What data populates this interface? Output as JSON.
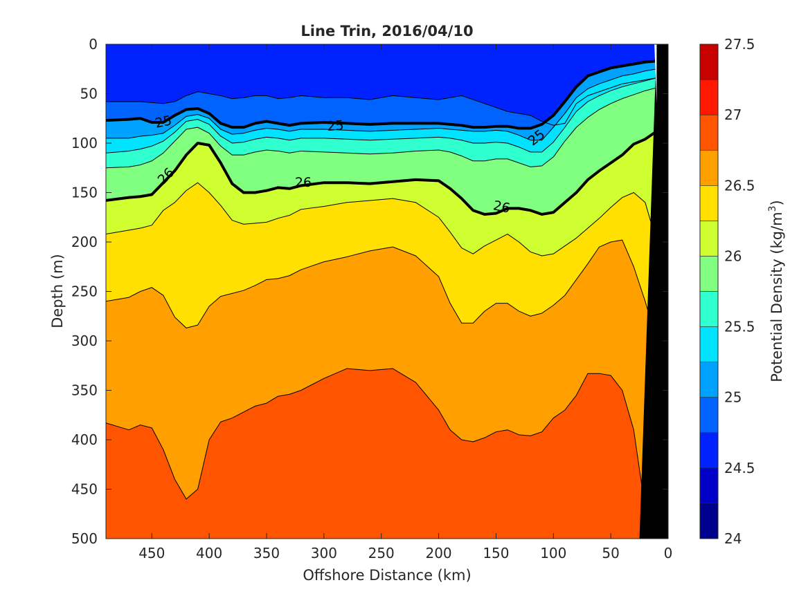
{
  "chart_data": {
    "type": "contour",
    "title": "Line Trin, 2016/04/10",
    "xlabel": "Offshore Distance (km)",
    "ylabel": "Depth (m)",
    "x_reversed": true,
    "y_reversed": true,
    "xlim": [
      490,
      0
    ],
    "ylim": [
      0,
      500
    ],
    "xticks": [
      450,
      400,
      350,
      300,
      250,
      200,
      150,
      100,
      50,
      0
    ],
    "yticks": [
      0,
      50,
      100,
      150,
      200,
      250,
      300,
      350,
      400,
      450,
      500
    ],
    "colorbar": {
      "label_main": "Potential Density (kg/m",
      "label_sup": "3",
      "label_close": ")",
      "range": [
        24,
        27.5
      ],
      "ticks": [
        "24",
        "24.5",
        "25",
        "25.5",
        "26",
        "26.5",
        "27",
        "27.5"
      ],
      "levels": [
        24,
        24.25,
        24.5,
        24.75,
        25,
        25.25,
        25.5,
        25.75,
        26,
        26.25,
        26.5,
        26.75,
        27,
        27.25,
        27.5
      ],
      "colors": [
        "#00008f",
        "#0000c8",
        "#0022ff",
        "#0062ff",
        "#00a2ff",
        "#00e2ff",
        "#30ffcf",
        "#80ff80",
        "#cfff30",
        "#ffe000",
        "#ffa000",
        "#ff5400",
        "#ff1800",
        "#c80000"
      ]
    },
    "isopycnals": [
      {
        "level": 24.75,
        "x": [
          490,
          460,
          440,
          430,
          420,
          410,
          400,
          390,
          380,
          370,
          360,
          350,
          340,
          330,
          320,
          300,
          280,
          260,
          240,
          220,
          200,
          180,
          170,
          160,
          150,
          140,
          130,
          120,
          110,
          100,
          90,
          80,
          70,
          60,
          50,
          40,
          30,
          20,
          10
        ],
        "y": [
          58,
          58,
          60,
          58,
          52,
          48,
          50,
          52,
          55,
          54,
          52,
          52,
          55,
          54,
          52,
          54,
          54,
          56,
          52,
          54,
          56,
          52,
          56,
          60,
          64,
          68,
          70,
          72,
          78,
          82,
          80,
          60,
          52,
          48,
          44,
          40,
          38,
          36,
          34
        ]
      },
      {
        "level": 25,
        "x": [
          490,
          470,
          460,
          450,
          440,
          430,
          420,
          410,
          400,
          390,
          380,
          370,
          360,
          350,
          340,
          330,
          320,
          300,
          280,
          260,
          240,
          220,
          200,
          190,
          180,
          170,
          160,
          150,
          140,
          130,
          120,
          110,
          100,
          90,
          80,
          70,
          60,
          50,
          40,
          30,
          20,
          10
        ],
        "y": [
          77,
          76,
          75,
          79,
          79,
          72,
          66,
          65,
          70,
          80,
          84,
          84,
          80,
          78,
          80,
          82,
          80,
          79,
          80,
          81,
          80,
          80,
          80,
          81,
          82,
          84,
          84,
          83,
          83,
          85,
          85,
          81,
          72,
          58,
          43,
          32,
          28,
          24,
          22,
          20,
          18,
          17
        ]
      },
      {
        "level": 25.25,
        "x": [
          490,
          470,
          460,
          450,
          440,
          430,
          420,
          410,
          400,
          390,
          380,
          370,
          360,
          350,
          340,
          330,
          320,
          300,
          280,
          260,
          240,
          220,
          200,
          190,
          180,
          170,
          160,
          150,
          140,
          130,
          120,
          110,
          100,
          90,
          80,
          70,
          60,
          50,
          40,
          30,
          20,
          10
        ],
        "y": [
          95,
          95,
          93,
          92,
          90,
          82,
          73,
          71,
          75,
          86,
          91,
          90,
          87,
          85,
          86,
          88,
          86,
          86,
          87,
          88,
          87,
          86,
          85,
          86,
          87,
          88,
          88,
          87,
          88,
          92,
          97,
          97,
          84,
          70,
          54,
          45,
          40,
          36,
          32,
          30,
          27,
          25
        ]
      },
      {
        "level": 25.5,
        "x": [
          490,
          470,
          460,
          450,
          440,
          430,
          420,
          410,
          400,
          390,
          380,
          370,
          360,
          350,
          340,
          330,
          320,
          300,
          280,
          260,
          240,
          220,
          200,
          190,
          180,
          170,
          160,
          150,
          140,
          130,
          120,
          110,
          100,
          90,
          80,
          70,
          60,
          50,
          40,
          30,
          20,
          10
        ],
        "y": [
          110,
          108,
          106,
          103,
          98,
          89,
          78,
          76,
          81,
          93,
          100,
          99,
          96,
          94,
          95,
          97,
          95,
          95,
          96,
          97,
          96,
          95,
          94,
          95,
          97,
          100,
          100,
          99,
          100,
          104,
          109,
          109,
          99,
          84,
          68,
          58,
          52,
          47,
          43,
          40,
          37,
          34
        ]
      },
      {
        "level": 25.75,
        "x": [
          490,
          470,
          460,
          450,
          440,
          430,
          420,
          410,
          400,
          390,
          380,
          370,
          360,
          350,
          340,
          330,
          320,
          300,
          280,
          260,
          240,
          220,
          200,
          190,
          180,
          170,
          160,
          150,
          140,
          130,
          120,
          110,
          100,
          90,
          80,
          70,
          60,
          50,
          40,
          30,
          20,
          10
        ],
        "y": [
          125,
          124,
          122,
          118,
          110,
          98,
          86,
          84,
          90,
          103,
          112,
          112,
          109,
          107,
          108,
          110,
          108,
          109,
          110,
          111,
          110,
          108,
          107,
          109,
          113,
          118,
          118,
          116,
          116,
          120,
          124,
          123,
          114,
          98,
          84,
          74,
          66,
          60,
          55,
          51,
          47,
          44
        ]
      },
      {
        "level": 26,
        "x": [
          490,
          470,
          460,
          450,
          440,
          430,
          420,
          410,
          400,
          390,
          380,
          370,
          360,
          350,
          340,
          330,
          320,
          300,
          280,
          260,
          240,
          220,
          200,
          190,
          180,
          170,
          160,
          150,
          140,
          130,
          120,
          110,
          100,
          90,
          80,
          70,
          60,
          50,
          40,
          30,
          20,
          10
        ],
        "y": [
          158,
          155,
          154,
          152,
          140,
          128,
          112,
          100,
          102,
          120,
          141,
          150,
          150,
          148,
          145,
          146,
          143,
          140,
          140,
          141,
          139,
          137,
          138,
          146,
          156,
          168,
          172,
          171,
          166,
          166,
          168,
          172,
          170,
          160,
          150,
          137,
          128,
          120,
          112,
          101,
          96,
          88
        ]
      },
      {
        "level": 26.25,
        "x": [
          490,
          470,
          460,
          450,
          440,
          430,
          420,
          410,
          400,
          390,
          380,
          370,
          360,
          350,
          340,
          330,
          320,
          300,
          280,
          260,
          240,
          220,
          200,
          190,
          180,
          170,
          160,
          150,
          140,
          130,
          120,
          110,
          100,
          90,
          80,
          70,
          60,
          50,
          40,
          30,
          20,
          10
        ],
        "y": [
          192,
          188,
          186,
          183,
          168,
          160,
          148,
          140,
          150,
          163,
          178,
          182,
          181,
          180,
          176,
          173,
          167,
          164,
          160,
          158,
          156,
          160,
          175,
          190,
          206,
          212,
          204,
          198,
          192,
          200,
          210,
          214,
          212,
          204,
          196,
          186,
          176,
          165,
          155,
          150,
          160,
          200
        ]
      },
      {
        "level": 26.5,
        "x": [
          490,
          470,
          460,
          450,
          440,
          430,
          420,
          410,
          400,
          390,
          380,
          370,
          360,
          350,
          340,
          330,
          320,
          300,
          280,
          260,
          240,
          220,
          200,
          190,
          180,
          170,
          160,
          150,
          140,
          130,
          120,
          110,
          100,
          90,
          80,
          70,
          60,
          50,
          40,
          30,
          20,
          10
        ],
        "y": [
          260,
          256,
          250,
          246,
          254,
          276,
          287,
          284,
          265,
          255,
          252,
          249,
          244,
          238,
          237,
          234,
          228,
          220,
          215,
          209,
          205,
          214,
          235,
          262,
          282,
          282,
          270,
          262,
          262,
          270,
          275,
          272,
          264,
          254,
          238,
          222,
          205,
          200,
          198,
          225,
          260,
          300
        ]
      },
      {
        "level": 26.75,
        "x": [
          490,
          470,
          460,
          450,
          440,
          430,
          420,
          410,
          400,
          390,
          380,
          370,
          360,
          350,
          340,
          330,
          320,
          300,
          280,
          260,
          240,
          220,
          200,
          190,
          180,
          170,
          160,
          150,
          140,
          130,
          120,
          110,
          100,
          90,
          80,
          70,
          60,
          50,
          40,
          30,
          20,
          10
        ],
        "y": [
          383,
          390,
          385,
          388,
          410,
          440,
          460,
          450,
          400,
          382,
          378,
          372,
          366,
          363,
          356,
          354,
          350,
          338,
          328,
          330,
          328,
          342,
          370,
          390,
          400,
          402,
          398,
          392,
          390,
          395,
          396,
          392,
          378,
          370,
          355,
          333,
          333,
          335,
          350,
          390,
          470,
          500
        ]
      }
    ],
    "labels": [
      {
        "text": "25",
        "x": 440,
        "y": 78,
        "angle": -12
      },
      {
        "text": "25",
        "x": 290,
        "y": 82,
        "angle": -4
      },
      {
        "text": "25",
        "x": 115,
        "y": 94,
        "angle": -38
      },
      {
        "text": "26",
        "x": 438,
        "y": 133,
        "angle": -45
      },
      {
        "text": "26",
        "x": 318,
        "y": 139,
        "angle": 0
      },
      {
        "text": "26",
        "x": 145,
        "y": 164,
        "angle": 12
      }
    ],
    "bold_levels": [
      25,
      26
    ],
    "ocean_bottom": {
      "x": [
        10,
        25,
        0,
        0
      ],
      "y": [
        0,
        500,
        500,
        0
      ]
    },
    "no_data_gap": {
      "x": [
        12,
        10,
        10
      ],
      "y": [
        0,
        0,
        60
      ]
    }
  }
}
